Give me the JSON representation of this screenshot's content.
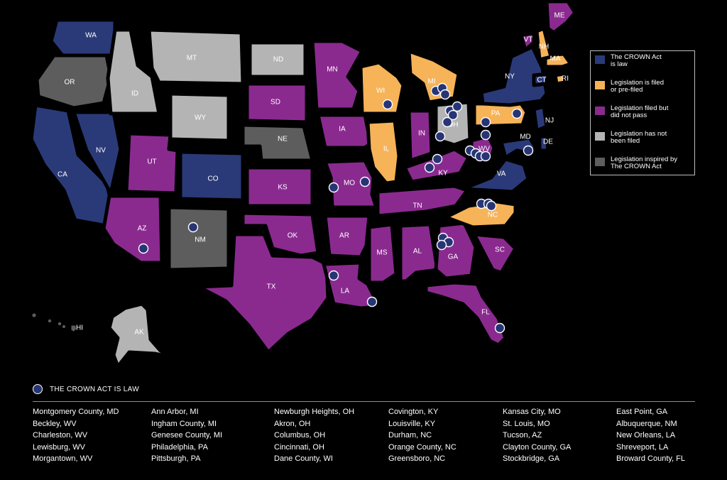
{
  "colors": {
    "law": "#2a3a78",
    "filed": "#f6b358",
    "did_not_pass": "#8a2a8f",
    "not_filed": "#b4b4b4",
    "inspired": "#5d5d5d"
  },
  "legend": [
    {
      "category": "law",
      "text": [
        "The CROWN Act",
        "is law"
      ]
    },
    {
      "category": "filed",
      "text": [
        "Legislation is filed",
        "or pre-filed"
      ]
    },
    {
      "category": "did_not_pass",
      "text": [
        "Legislation filed but",
        "did not pass"
      ]
    },
    {
      "category": "not_filed",
      "text": [
        "Legislation has not",
        "been filed"
      ]
    },
    {
      "category": "inspired",
      "text": [
        "Legislation inspired by",
        "The CROWN Act"
      ]
    }
  ],
  "states": [
    {
      "code": "WA",
      "category": "law"
    },
    {
      "code": "OR",
      "category": "inspired"
    },
    {
      "code": "CA",
      "category": "law"
    },
    {
      "code": "NV",
      "category": "law"
    },
    {
      "code": "ID",
      "category": "not_filed"
    },
    {
      "code": "MT",
      "category": "not_filed"
    },
    {
      "code": "WY",
      "category": "not_filed"
    },
    {
      "code": "UT",
      "category": "did_not_pass"
    },
    {
      "code": "CO",
      "category": "law"
    },
    {
      "code": "AZ",
      "category": "did_not_pass"
    },
    {
      "code": "NM",
      "category": "inspired"
    },
    {
      "code": "ND",
      "category": "not_filed"
    },
    {
      "code": "SD",
      "category": "did_not_pass"
    },
    {
      "code": "NE",
      "category": "inspired"
    },
    {
      "code": "KS",
      "category": "did_not_pass"
    },
    {
      "code": "OK",
      "category": "did_not_pass"
    },
    {
      "code": "TX",
      "category": "did_not_pass"
    },
    {
      "code": "MN",
      "category": "did_not_pass"
    },
    {
      "code": "IA",
      "category": "did_not_pass"
    },
    {
      "code": "MO",
      "category": "did_not_pass"
    },
    {
      "code": "AR",
      "category": "did_not_pass"
    },
    {
      "code": "LA",
      "category": "did_not_pass"
    },
    {
      "code": "WI",
      "category": "filed"
    },
    {
      "code": "IL",
      "category": "filed"
    },
    {
      "code": "MI",
      "category": "filed"
    },
    {
      "code": "IN",
      "category": "did_not_pass"
    },
    {
      "code": "OH",
      "category": "not_filed"
    },
    {
      "code": "KY",
      "category": "did_not_pass"
    },
    {
      "code": "TN",
      "category": "did_not_pass"
    },
    {
      "code": "MS",
      "category": "did_not_pass"
    },
    {
      "code": "AL",
      "category": "did_not_pass"
    },
    {
      "code": "GA",
      "category": "did_not_pass"
    },
    {
      "code": "FL",
      "category": "did_not_pass"
    },
    {
      "code": "SC",
      "category": "did_not_pass"
    },
    {
      "code": "NC",
      "category": "filed"
    },
    {
      "code": "VA",
      "category": "law"
    },
    {
      "code": "WV",
      "category": "did_not_pass"
    },
    {
      "code": "MD",
      "category": "law"
    },
    {
      "code": "DE",
      "category": "law"
    },
    {
      "code": "PA",
      "category": "filed"
    },
    {
      "code": "NJ",
      "category": "law"
    },
    {
      "code": "NY",
      "category": "law"
    },
    {
      "code": "CT",
      "category": "law"
    },
    {
      "code": "RI",
      "category": "filed"
    },
    {
      "code": "MA",
      "category": "filed"
    },
    {
      "code": "VT",
      "category": "did_not_pass"
    },
    {
      "code": "NH",
      "category": "filed"
    },
    {
      "code": "ME",
      "category": "did_not_pass"
    },
    {
      "code": "AK",
      "category": "not_filed"
    },
    {
      "code": "HI",
      "category": "inspired"
    }
  ],
  "key_label": "THE CROWN ACT IS LAW",
  "places": [
    [
      "Montgomery County, MD",
      "Beckley, WV",
      "Charleston, WV",
      "Lewisburg, WV",
      "Morgantown, WV"
    ],
    [
      "Ann Arbor, MI",
      "Ingham County, MI",
      "Genesee County, MI",
      "Philadelphia, PA",
      "Pittsburgh, PA"
    ],
    [
      "Newburgh Heights, OH",
      "Akron, OH",
      "Columbus, OH",
      "Cincinnati, OH",
      "Dane County, WI"
    ],
    [
      "Covington, KY",
      "Louisville, KY",
      "Durham, NC",
      "Orange County, NC",
      "Greensboro, NC"
    ],
    [
      "Kansas City, MO",
      "St. Louis, MO",
      "Tucson, AZ",
      "Clayton County, GA",
      "Stockbridge, GA"
    ],
    [
      "East Point, GA",
      "Albuquerque, NM",
      "New Orleans, LA",
      "Shreveport, LA",
      "Broward County, FL"
    ]
  ]
}
